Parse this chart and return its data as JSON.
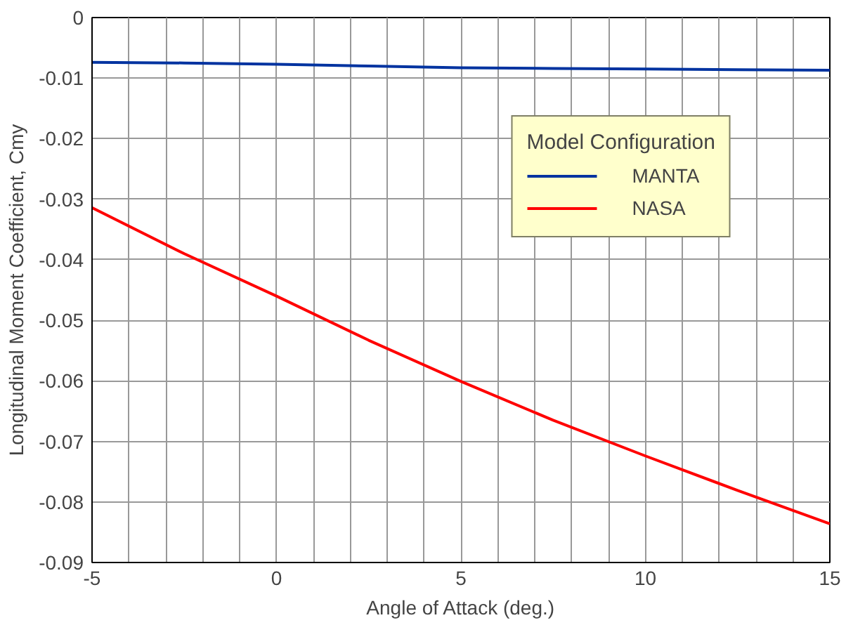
{
  "chart_data": {
    "type": "line",
    "xlabel": "Angle of Attack (deg.)",
    "ylabel": "Longitudinal Moment Coefficient, Cmy",
    "legend_title": "Model Configuration",
    "x": [
      -5,
      -2.5,
      0,
      2.5,
      5,
      7.5,
      10,
      12.5,
      15
    ],
    "series": [
      {
        "name": "MANTA",
        "color": "#0033a0",
        "values": [
          -0.0074,
          -0.0075,
          -0.0077,
          -0.008,
          -0.0083,
          -0.0084,
          -0.0085,
          -0.0086,
          -0.0087
        ]
      },
      {
        "name": "NASA",
        "color": "#ff0000",
        "values": [
          -0.0314,
          -0.039,
          -0.046,
          -0.0533,
          -0.0601,
          -0.0665,
          -0.0724,
          -0.0781,
          -0.0836
        ]
      }
    ],
    "xlim": [
      -5,
      15
    ],
    "ylim": [
      -0.09,
      0
    ],
    "xticks": [
      -5,
      {
        "value": -4,
        "label": null
      },
      {
        "value": -3,
        "label": null
      },
      {
        "value": -2,
        "label": null
      },
      {
        "value": -1,
        "label": null
      },
      0,
      {
        "value": 1,
        "label": null
      },
      {
        "value": 2,
        "label": null
      },
      {
        "value": 3,
        "label": null
      },
      {
        "value": 4,
        "label": null
      },
      5,
      {
        "value": 6,
        "label": null
      },
      {
        "value": 7,
        "label": null
      },
      {
        "value": 8,
        "label": null
      },
      {
        "value": 9,
        "label": null
      },
      10,
      {
        "value": 11,
        "label": null
      },
      {
        "value": 12,
        "label": null
      },
      {
        "value": 13,
        "label": null
      },
      {
        "value": 14,
        "label": null
      },
      15
    ],
    "yticks": [
      -0.09,
      -0.08,
      -0.07,
      -0.06,
      -0.05,
      -0.04,
      -0.03,
      -0.02,
      -0.01,
      0
    ],
    "grid": true,
    "legend": "top right",
    "line_style": "solid",
    "marker": "none"
  }
}
